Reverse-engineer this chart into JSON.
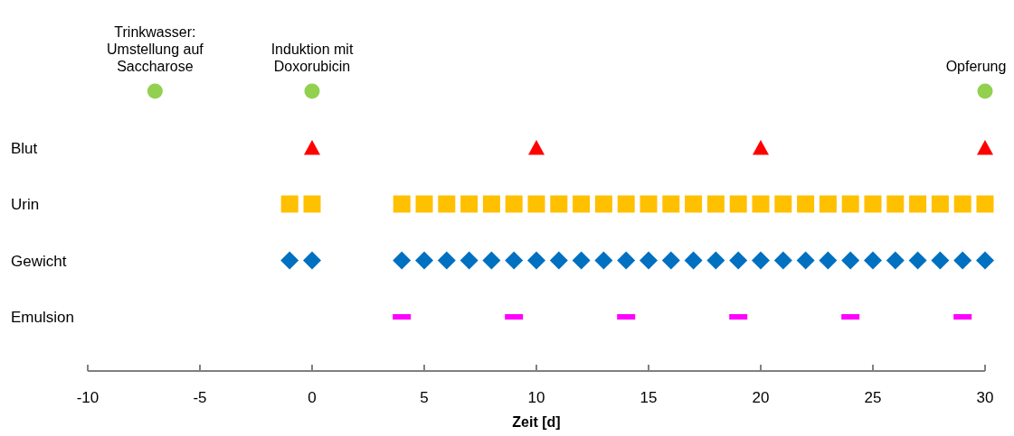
{
  "chart_data": {
    "type": "scatter",
    "orientation": "horizontal",
    "xlabel": "Zeit [d]",
    "xlim": [
      -10,
      30
    ],
    "xticks": [
      -10,
      -5,
      0,
      5,
      10,
      15,
      20,
      25,
      30
    ],
    "categories": [
      null,
      "Blut",
      "Urin",
      "Gewicht",
      "Emulsion"
    ],
    "grid": false,
    "series": [
      {
        "color": "#92d050",
        "marker": "circle",
        "values": [
          -7,
          null,
          null,
          null,
          null
        ]
      },
      {
        "color": "#92d050",
        "marker": "circle",
        "values": [
          0,
          null,
          null,
          null,
          null
        ]
      },
      {
        "color": "#92d050",
        "marker": "circle",
        "values": [
          30,
          null,
          null,
          null,
          null
        ]
      },
      {
        "color": "#ff0000",
        "marker": "triangle",
        "values": [
          null,
          0,
          null,
          null,
          null
        ]
      },
      {
        "color": "#ff0000",
        "marker": "triangle",
        "values": [
          null,
          10,
          null,
          null,
          null
        ]
      },
      {
        "color": "#ff0000",
        "marker": "triangle",
        "values": [
          null,
          20,
          null,
          null,
          null
        ]
      },
      {
        "color": "#ff0000",
        "marker": "triangle",
        "values": [
          null,
          30,
          null,
          null,
          null
        ]
      },
      {
        "color": "#ffc000",
        "marker": "square",
        "values": [
          null,
          null,
          -1,
          null,
          null
        ]
      },
      {
        "color": "#ffc000",
        "marker": "square",
        "values": [
          null,
          null,
          0,
          null,
          null
        ]
      },
      {
        "color": "#ffc000",
        "marker": "square",
        "values": [
          null,
          null,
          4,
          null,
          null
        ]
      },
      {
        "color": "#ffc000",
        "marker": "square",
        "values": [
          null,
          null,
          5,
          null,
          null
        ]
      },
      {
        "color": "#ffc000",
        "marker": "square",
        "values": [
          null,
          null,
          6,
          null,
          null
        ]
      },
      {
        "color": "#ffc000",
        "marker": "square",
        "values": [
          null,
          null,
          7,
          null,
          null
        ]
      },
      {
        "color": "#ffc000",
        "marker": "square",
        "values": [
          null,
          null,
          8,
          null,
          null
        ]
      },
      {
        "color": "#ffc000",
        "marker": "square",
        "values": [
          null,
          null,
          9,
          null,
          null
        ]
      },
      {
        "color": "#ffc000",
        "marker": "square",
        "values": [
          null,
          null,
          10,
          null,
          null
        ]
      },
      {
        "color": "#ffc000",
        "marker": "square",
        "values": [
          null,
          null,
          11,
          null,
          null
        ]
      },
      {
        "color": "#ffc000",
        "marker": "square",
        "values": [
          null,
          null,
          12,
          null,
          null
        ]
      },
      {
        "color": "#ffc000",
        "marker": "square",
        "values": [
          null,
          null,
          13,
          null,
          null
        ]
      },
      {
        "color": "#ffc000",
        "marker": "square",
        "values": [
          null,
          null,
          14,
          null,
          null
        ]
      },
      {
        "color": "#ffc000",
        "marker": "square",
        "values": [
          null,
          null,
          15,
          null,
          null
        ]
      },
      {
        "color": "#ffc000",
        "marker": "square",
        "values": [
          null,
          null,
          16,
          null,
          null
        ]
      },
      {
        "color": "#ffc000",
        "marker": "square",
        "values": [
          null,
          null,
          17,
          null,
          null
        ]
      },
      {
        "color": "#ffc000",
        "marker": "square",
        "values": [
          null,
          null,
          18,
          null,
          null
        ]
      },
      {
        "color": "#ffc000",
        "marker": "square",
        "values": [
          null,
          null,
          19,
          null,
          null
        ]
      },
      {
        "color": "#ffc000",
        "marker": "square",
        "values": [
          null,
          null,
          20,
          null,
          null
        ]
      },
      {
        "color": "#ffc000",
        "marker": "square",
        "values": [
          null,
          null,
          21,
          null,
          null
        ]
      },
      {
        "color": "#ffc000",
        "marker": "square",
        "values": [
          null,
          null,
          22,
          null,
          null
        ]
      },
      {
        "color": "#ffc000",
        "marker": "square",
        "values": [
          null,
          null,
          23,
          null,
          null
        ]
      },
      {
        "color": "#ffc000",
        "marker": "square",
        "values": [
          null,
          null,
          24,
          null,
          null
        ]
      },
      {
        "color": "#ffc000",
        "marker": "square",
        "values": [
          null,
          null,
          25,
          null,
          null
        ]
      },
      {
        "color": "#ffc000",
        "marker": "square",
        "values": [
          null,
          null,
          26,
          null,
          null
        ]
      },
      {
        "color": "#ffc000",
        "marker": "square",
        "values": [
          null,
          null,
          27,
          null,
          null
        ]
      },
      {
        "color": "#ffc000",
        "marker": "square",
        "values": [
          null,
          null,
          28,
          null,
          null
        ]
      },
      {
        "color": "#ffc000",
        "marker": "square",
        "values": [
          null,
          null,
          29,
          null,
          null
        ]
      },
      {
        "color": "#ffc000",
        "marker": "square",
        "values": [
          null,
          null,
          30,
          null,
          null
        ]
      },
      {
        "color": "#0070c0",
        "marker": "diamond",
        "values": [
          null,
          null,
          null,
          -1,
          null
        ]
      },
      {
        "color": "#0070c0",
        "marker": "diamond",
        "values": [
          null,
          null,
          null,
          0,
          null
        ]
      },
      {
        "color": "#0070c0",
        "marker": "diamond",
        "values": [
          null,
          null,
          null,
          4,
          null
        ]
      },
      {
        "color": "#0070c0",
        "marker": "diamond",
        "values": [
          null,
          null,
          null,
          5,
          null
        ]
      },
      {
        "color": "#0070c0",
        "marker": "diamond",
        "values": [
          null,
          null,
          null,
          6,
          null
        ]
      },
      {
        "color": "#0070c0",
        "marker": "diamond",
        "values": [
          null,
          null,
          null,
          7,
          null
        ]
      },
      {
        "color": "#0070c0",
        "marker": "diamond",
        "values": [
          null,
          null,
          null,
          8,
          null
        ]
      },
      {
        "color": "#0070c0",
        "marker": "diamond",
        "values": [
          null,
          null,
          null,
          9,
          null
        ]
      },
      {
        "color": "#0070c0",
        "marker": "diamond",
        "values": [
          null,
          null,
          null,
          10,
          null
        ]
      },
      {
        "color": "#0070c0",
        "marker": "diamond",
        "values": [
          null,
          null,
          null,
          11,
          null
        ]
      },
      {
        "color": "#0070c0",
        "marker": "diamond",
        "values": [
          null,
          null,
          null,
          12,
          null
        ]
      },
      {
        "color": "#0070c0",
        "marker": "diamond",
        "values": [
          null,
          null,
          null,
          13,
          null
        ]
      },
      {
        "color": "#0070c0",
        "marker": "diamond",
        "values": [
          null,
          null,
          null,
          14,
          null
        ]
      },
      {
        "color": "#0070c0",
        "marker": "diamond",
        "values": [
          null,
          null,
          null,
          15,
          null
        ]
      },
      {
        "color": "#0070c0",
        "marker": "diamond",
        "values": [
          null,
          null,
          null,
          16,
          null
        ]
      },
      {
        "color": "#0070c0",
        "marker": "diamond",
        "values": [
          null,
          null,
          null,
          17,
          null
        ]
      },
      {
        "color": "#0070c0",
        "marker": "diamond",
        "values": [
          null,
          null,
          null,
          18,
          null
        ]
      },
      {
        "color": "#0070c0",
        "marker": "diamond",
        "values": [
          null,
          null,
          null,
          19,
          null
        ]
      },
      {
        "color": "#0070c0",
        "marker": "diamond",
        "values": [
          null,
          null,
          null,
          20,
          null
        ]
      },
      {
        "color": "#0070c0",
        "marker": "diamond",
        "values": [
          null,
          null,
          null,
          21,
          null
        ]
      },
      {
        "color": "#0070c0",
        "marker": "diamond",
        "values": [
          null,
          null,
          null,
          22,
          null
        ]
      },
      {
        "color": "#0070c0",
        "marker": "diamond",
        "values": [
          null,
          null,
          null,
          23,
          null
        ]
      },
      {
        "color": "#0070c0",
        "marker": "diamond",
        "values": [
          null,
          null,
          null,
          24,
          null
        ]
      },
      {
        "color": "#0070c0",
        "marker": "diamond",
        "values": [
          null,
          null,
          null,
          25,
          null
        ]
      },
      {
        "color": "#0070c0",
        "marker": "diamond",
        "values": [
          null,
          null,
          null,
          26,
          null
        ]
      },
      {
        "color": "#0070c0",
        "marker": "diamond",
        "values": [
          null,
          null,
          null,
          27,
          null
        ]
      },
      {
        "color": "#0070c0",
        "marker": "diamond",
        "values": [
          null,
          null,
          null,
          28,
          null
        ]
      },
      {
        "color": "#0070c0",
        "marker": "diamond",
        "values": [
          null,
          null,
          null,
          29,
          null
        ]
      },
      {
        "color": "#0070c0",
        "marker": "diamond",
        "values": [
          null,
          null,
          null,
          30,
          null
        ]
      },
      {
        "color": "#ff00ff",
        "values": [
          null,
          null,
          null,
          null,
          4
        ]
      },
      {
        "color": "#ff00ff",
        "values": [
          null,
          null,
          null,
          null,
          9
        ]
      },
      {
        "color": "#ff00ff",
        "values": [
          null,
          null,
          null,
          null,
          14
        ]
      },
      {
        "color": "#ff00ff",
        "values": [
          null,
          null,
          null,
          null,
          19
        ]
      },
      {
        "color": "#ff00ff",
        "values": [
          null,
          null,
          null,
          null,
          24
        ]
      },
      {
        "color": "#ff00ff",
        "values": [
          null,
          null,
          null,
          null,
          29
        ]
      }
    ],
    "annotations": [
      "Trinkwasser:\nUmstellung auf\nSaccharose",
      "Induktion mit\nDoxorubicin",
      "Opferung"
    ]
  }
}
